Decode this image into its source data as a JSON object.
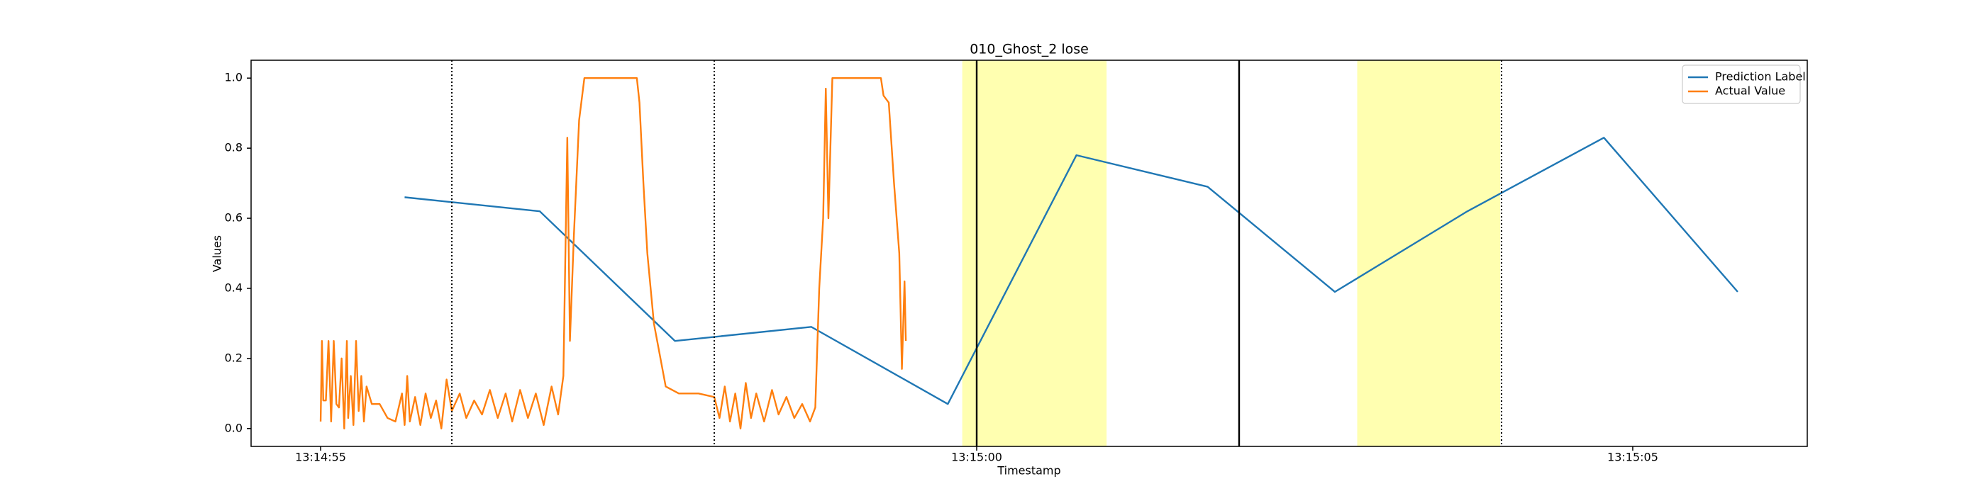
{
  "chart_data": {
    "type": "line",
    "title": "010_Ghost_2 lose",
    "x_label": "Timestamp",
    "y_label": "Values",
    "xlim": [
      "13:14:54.47",
      "13:15:06.33"
    ],
    "xticks": [
      "13:14:55",
      "13:15:00",
      "13:15:05"
    ],
    "ylim": [
      -0.051,
      1.051
    ],
    "yticks": [
      {
        "value": 0,
        "label": "0.0"
      },
      {
        "value": 0.2,
        "label": "0.2"
      },
      {
        "value": 0.4,
        "label": "0.4"
      },
      {
        "value": 0.6,
        "label": "0.6"
      },
      {
        "value": 0.8,
        "label": "0.8"
      },
      {
        "value": 1,
        "label": "1.0"
      }
    ],
    "legend": "upper right",
    "spans": [
      {
        "x": [
          "13:14:59.89",
          "13:15:00.99"
        ],
        "color": "#ffffb0"
      },
      {
        "x": [
          "13:15:02.90",
          "13:15:03.99"
        ],
        "color": "#ffffb0"
      }
    ],
    "vlines": [
      {
        "x": "13:14:56",
        "style": "dotted"
      },
      {
        "x": "13:14:58",
        "style": "dotted"
      },
      {
        "x": "13:15:00",
        "style": "solid"
      },
      {
        "x": "13:15:02",
        "style": "solid"
      },
      {
        "x": "13:15:04",
        "style": "dotted"
      }
    ],
    "series": [
      {
        "name": "Prediction Label",
        "color": "#1f77b4",
        "x": [
          "13:14:55.64",
          "13:14:56.67",
          "13:14:57.70",
          "13:14:58.74",
          "13:14:59.78",
          "13:15:00.76",
          "13:15:01.76",
          "13:15:02.73",
          "13:15:03.74",
          "13:15:04.78",
          "13:15:05.80"
        ],
        "values": [
          0.66,
          0.62,
          0.25,
          0.29,
          0.07,
          0.78,
          0.69,
          0.39,
          0.62,
          0.83,
          0.39
        ]
      },
      {
        "name": "Actual Value",
        "color": "#ff7f0e",
        "x": [
          "13:14:55.00",
          "13:14:55.01",
          "13:14:55.02",
          "13:14:55.04",
          "13:14:55.06",
          "13:14:55.08",
          "13:14:55.10",
          "13:14:55.12",
          "13:14:55.14",
          "13:14:55.16",
          "13:14:55.18",
          "13:14:55.20",
          "13:14:55.21",
          "13:14:55.23",
          "13:14:55.25",
          "13:14:55.27",
          "13:14:55.29",
          "13:14:55.31",
          "13:14:55.33",
          "13:14:55.35",
          "13:14:55.39",
          "13:14:55.45",
          "13:14:55.51",
          "13:14:55.57",
          "13:14:55.62",
          "13:14:55.64",
          "13:14:55.66",
          "13:14:55.68",
          "13:14:55.72",
          "13:14:55.76",
          "13:14:55.80",
          "13:14:55.84",
          "13:14:55.88",
          "13:14:55.92",
          "13:14:55.96",
          "13:14:56.00",
          "13:14:56.06",
          "13:14:56.11",
          "13:14:56.17",
          "13:14:56.23",
          "13:14:56.29",
          "13:14:56.35",
          "13:14:56.41",
          "13:14:56.46",
          "13:14:56.52",
          "13:14:56.58",
          "13:14:56.64",
          "13:14:56.70",
          "13:14:56.76",
          "13:14:56.81",
          "13:14:56.85",
          "13:14:56.88",
          "13:14:56.90",
          "13:14:56.93",
          "13:14:56.97",
          "13:14:57.01",
          "13:14:57.20",
          "13:14:57.41",
          "13:14:57.43",
          "13:14:57.46",
          "13:14:57.49",
          "13:14:57.54",
          "13:14:57.59",
          "13:14:57.63",
          "13:14:57.73",
          "13:14:57.88",
          "13:14:58.00",
          "13:14:58.04",
          "13:14:58.08",
          "13:14:58.12",
          "13:14:58.16",
          "13:14:58.20",
          "13:14:58.24",
          "13:14:58.28",
          "13:14:58.32",
          "13:14:58.38",
          "13:14:58.44",
          "13:14:58.49",
          "13:14:58.55",
          "13:14:58.61",
          "13:14:58.67",
          "13:14:58.73",
          "13:14:58.77",
          "13:14:58.80",
          "13:14:58.83",
          "13:14:58.85",
          "13:14:58.87",
          "13:14:58.90",
          "13:14:59.10",
          "13:14:59.27",
          "13:14:59.29",
          "13:14:59.33",
          "13:14:59.37",
          "13:14:59.41",
          "13:14:59.43",
          "13:14:59.45",
          "13:14:59.46"
        ],
        "values": [
          0.02,
          0.25,
          0.08,
          0.08,
          0.25,
          0.02,
          0.25,
          0.07,
          0.06,
          0.2,
          0.0,
          0.25,
          0.03,
          0.15,
          0.01,
          0.25,
          0.05,
          0.15,
          0.02,
          0.12,
          0.07,
          0.07,
          0.03,
          0.02,
          0.1,
          0.01,
          0.15,
          0.02,
          0.09,
          0.01,
          0.1,
          0.03,
          0.08,
          0.0,
          0.14,
          0.05,
          0.1,
          0.03,
          0.08,
          0.04,
          0.11,
          0.03,
          0.1,
          0.02,
          0.11,
          0.03,
          0.1,
          0.01,
          0.12,
          0.04,
          0.15,
          0.83,
          0.25,
          0.55,
          0.88,
          1.0,
          1.0,
          1.0,
          0.93,
          0.7,
          0.5,
          0.3,
          0.2,
          0.12,
          0.1,
          0.1,
          0.09,
          0.03,
          0.12,
          0.02,
          0.1,
          0.0,
          0.13,
          0.03,
          0.1,
          0.02,
          0.11,
          0.04,
          0.09,
          0.03,
          0.07,
          0.02,
          0.06,
          0.4,
          0.6,
          0.97,
          0.6,
          1.0,
          1.0,
          1.0,
          0.95,
          0.93,
          0.7,
          0.5,
          0.17,
          0.42,
          0.25
        ]
      }
    ]
  }
}
